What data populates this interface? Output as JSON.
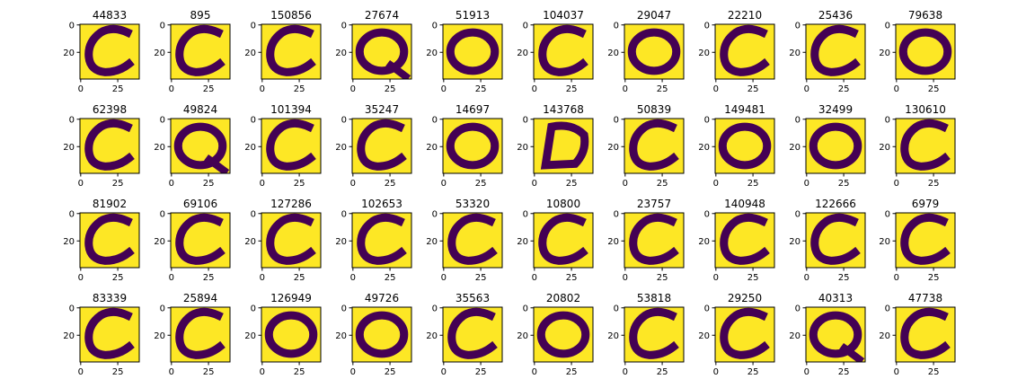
{
  "figure": {
    "background": "#ffffff",
    "colors": {
      "background_pixel": "#fde725",
      "stroke_pixel": "#440154"
    }
  },
  "chart_data": {
    "type": "heatmap",
    "description_kind": "grid of 40 binary 40x40 character images (letters C/O/Q/D variants)",
    "rows": 4,
    "cols": 10,
    "image_size": [
      40,
      40
    ],
    "colormap": "viridis",
    "values_range": [
      0,
      1
    ],
    "xticks": [
      0,
      25
    ],
    "yticks": [
      0,
      20
    ],
    "titles": [
      "44833",
      "895",
      "150856",
      "27674",
      "51913",
      "104037",
      "29047",
      "22210",
      "25436",
      "79638",
      "62398",
      "49824",
      "101394",
      "35247",
      "14697",
      "143768",
      "50839",
      "149481",
      "32499",
      "130610",
      "81902",
      "69106",
      "127286",
      "102653",
      "53320",
      "10800",
      "23757",
      "140948",
      "122666",
      "6979",
      "83339",
      "25894",
      "126949",
      "49726",
      "35563",
      "20802",
      "53818",
      "29250",
      "40313",
      "47738"
    ],
    "glyphs": [
      "C",
      "C",
      "C",
      "Q",
      "O",
      "C",
      "O",
      "C",
      "C",
      "O",
      "C",
      "Q",
      "C",
      "C",
      "O",
      "D",
      "C",
      "O",
      "O",
      "C",
      "C",
      "C",
      "C",
      "C",
      "C",
      "C",
      "C",
      "C",
      "C",
      "C",
      "C",
      "C",
      "O",
      "O",
      "C",
      "O",
      "C",
      "C",
      "Q",
      "C"
    ]
  }
}
